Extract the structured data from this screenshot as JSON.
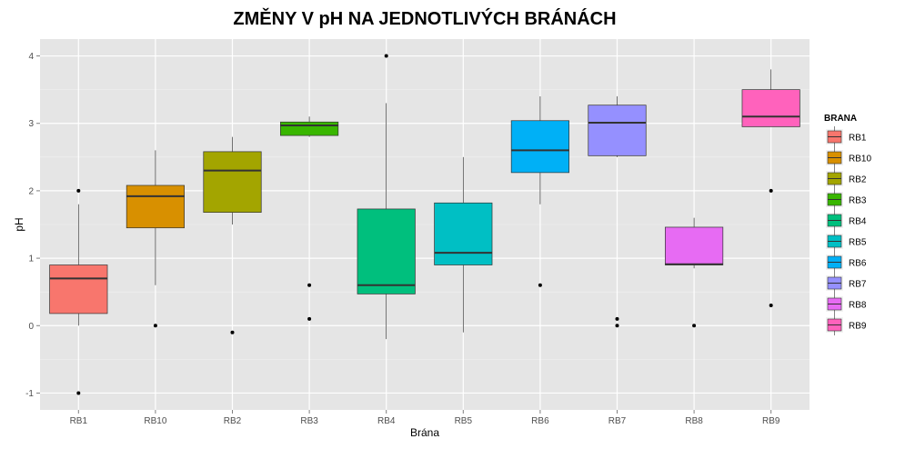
{
  "chart_data": {
    "type": "boxplot",
    "title": "ZMĚNY V pH NA JEDNOTLIVÝCH BRÁNÁCH",
    "xlabel": "Brána",
    "ylabel": "pH",
    "ylim": [
      -1.25,
      4.25
    ],
    "yticks": [
      "-1",
      "0",
      "1",
      "2",
      "3",
      "4"
    ],
    "grid": true,
    "legend_title": "BRANA",
    "legend_position": "right",
    "categories": [
      "RB1",
      "RB10",
      "RB2",
      "RB3",
      "RB4",
      "RB5",
      "RB6",
      "RB7",
      "RB8",
      "RB9"
    ],
    "boxes": [
      {
        "name": "RB1",
        "color": "#F8766D",
        "whisker_low": 0.0,
        "q1": 0.18,
        "median": 0.7,
        "q3": 0.9,
        "whisker_high": 1.8,
        "outliers": [
          2.0,
          -1.0
        ]
      },
      {
        "name": "RB10",
        "color": "#D89000",
        "whisker_low": 0.6,
        "q1": 1.45,
        "median": 1.92,
        "q3": 2.08,
        "whisker_high": 2.6,
        "outliers": [
          0.0
        ]
      },
      {
        "name": "RB2",
        "color": "#A3A500",
        "whisker_low": 1.5,
        "q1": 1.68,
        "median": 2.3,
        "q3": 2.58,
        "whisker_high": 2.8,
        "outliers": [
          -0.1
        ]
      },
      {
        "name": "RB3",
        "color": "#39B600",
        "whisker_low": 2.8,
        "q1": 2.82,
        "median": 2.97,
        "q3": 3.02,
        "whisker_high": 3.1,
        "outliers": [
          0.6,
          0.1
        ]
      },
      {
        "name": "RB4",
        "color": "#00BF7D",
        "whisker_low": -0.2,
        "q1": 0.47,
        "median": 0.6,
        "q3": 1.73,
        "whisker_high": 3.3,
        "outliers": [
          4.0
        ]
      },
      {
        "name": "RB5",
        "color": "#00BFC4",
        "whisker_low": -0.1,
        "q1": 0.9,
        "median": 1.08,
        "q3": 1.82,
        "whisker_high": 2.5,
        "outliers": []
      },
      {
        "name": "RB6",
        "color": "#00B0F6",
        "whisker_low": 1.8,
        "q1": 2.27,
        "median": 2.6,
        "q3": 3.04,
        "whisker_high": 3.4,
        "outliers": [
          0.6
        ]
      },
      {
        "name": "RB7",
        "color": "#9590FF",
        "whisker_low": 2.5,
        "q1": 2.52,
        "median": 3.01,
        "q3": 3.27,
        "whisker_high": 3.4,
        "outliers": [
          0.1,
          0.0
        ]
      },
      {
        "name": "RB8",
        "color": "#E76BF3",
        "whisker_low": 0.85,
        "q1": 0.9,
        "median": 0.91,
        "q3": 1.46,
        "whisker_high": 1.6,
        "outliers": [
          0.0
        ]
      },
      {
        "name": "RB9",
        "color": "#FF62BC",
        "whisker_low": 2.95,
        "q1": 2.95,
        "median": 3.1,
        "q3": 3.5,
        "whisker_high": 3.8,
        "outliers": [
          2.0,
          0.3
        ]
      }
    ],
    "colors": {
      "panel_background": "#E5E5E5",
      "grid_major": "#FFFFFF",
      "grid_minor": "#F2F2F2",
      "box_outline": "#333333",
      "median_line": "#333333",
      "outlier": "#000000"
    }
  }
}
